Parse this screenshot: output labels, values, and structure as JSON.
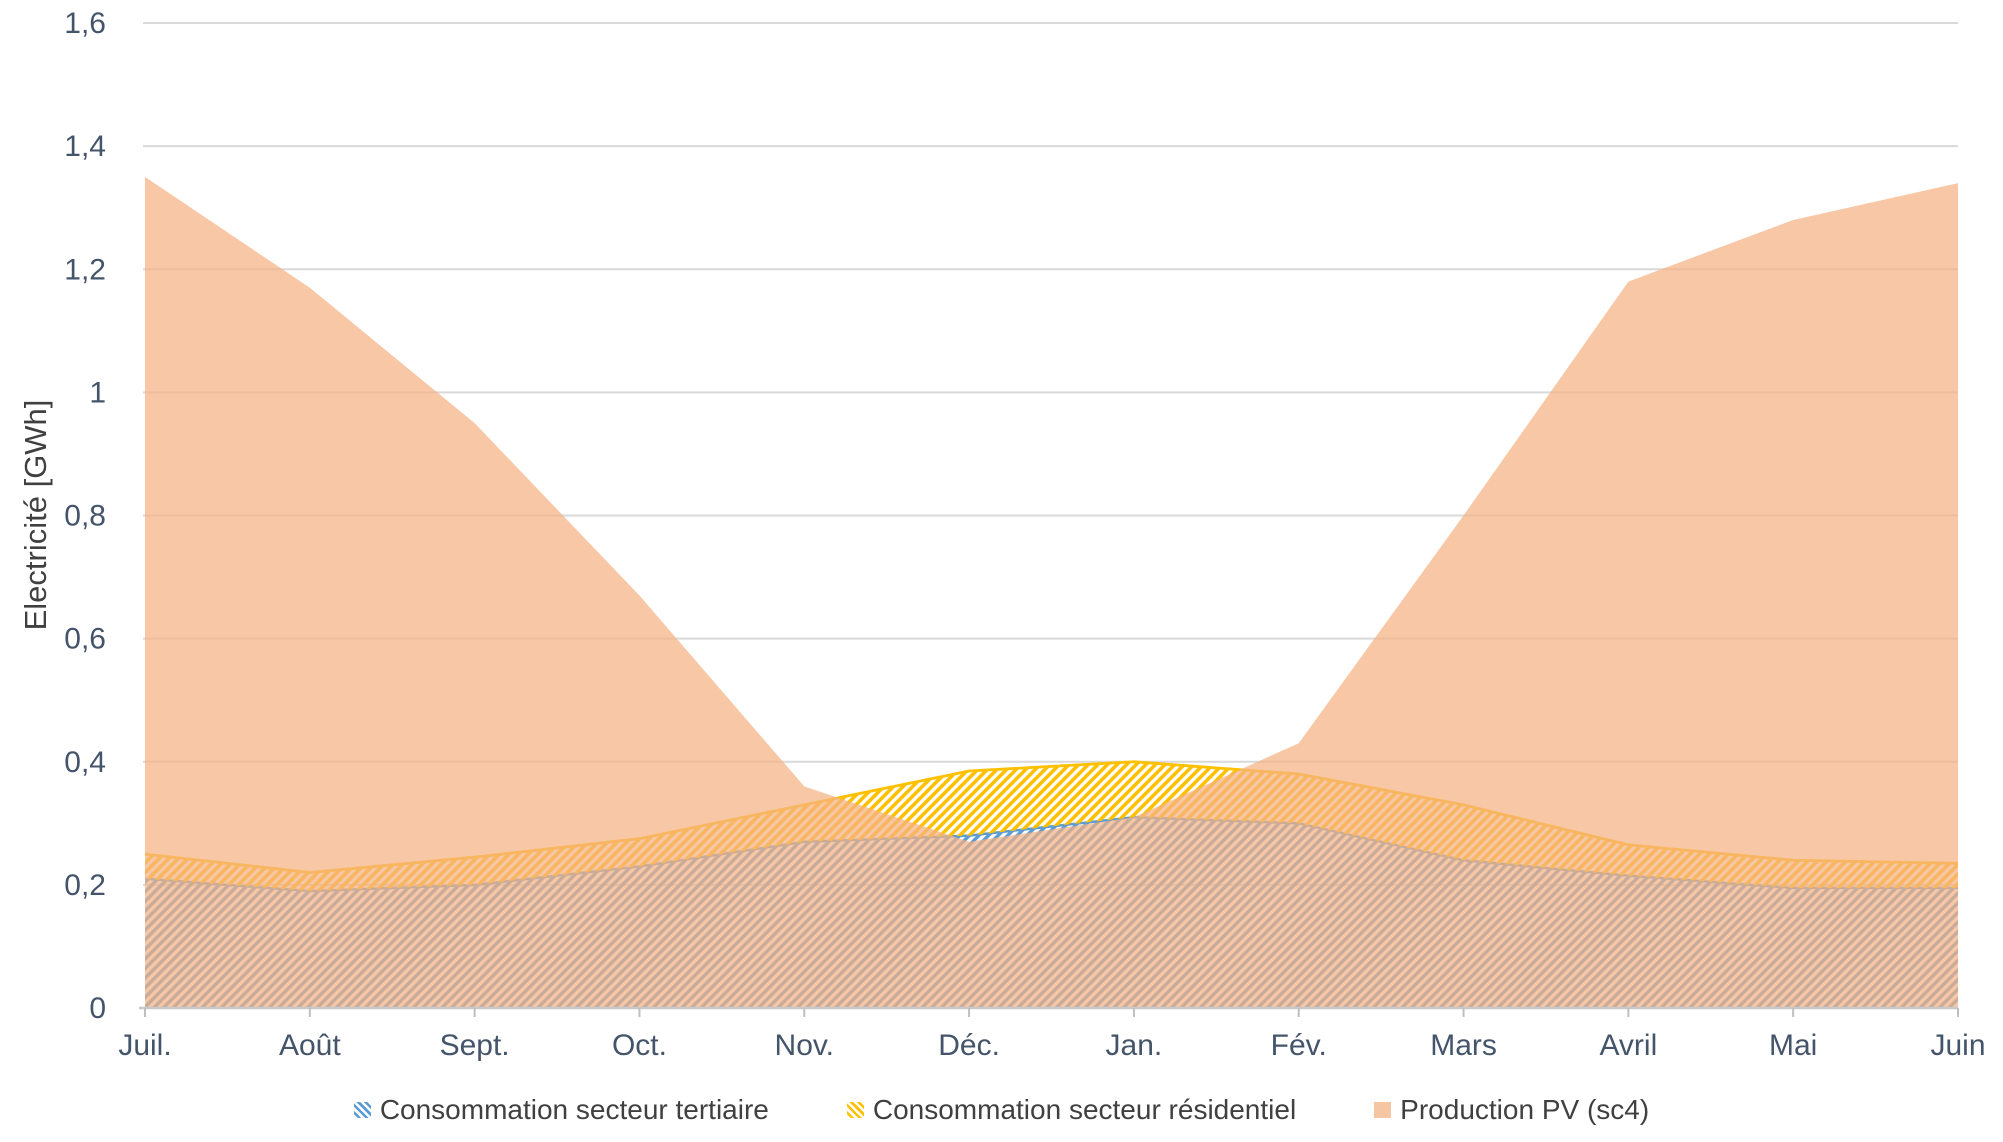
{
  "chart_data": {
    "type": "area",
    "title": "",
    "xlabel": "",
    "ylabel": "Electricité [GWh]",
    "x_categories": [
      "Juil.",
      "Août",
      "Sept.",
      "Oct.",
      "Nov.",
      "Déc.",
      "Jan.",
      "Fév.",
      "Mars",
      "Avril",
      "Mai",
      "Juin"
    ],
    "y_ticks": [
      "0",
      "0,2",
      "0,4",
      "0,6",
      "0,8",
      "1",
      "1,2",
      "1,4",
      "1,6"
    ],
    "ylim": [
      0,
      1.6
    ],
    "grid": true,
    "legend_position": "bottom",
    "series": [
      {
        "name": "Consommation secteur tertiaire",
        "style": "hatched-area",
        "stack": "consommation",
        "color": "#5B9BD5",
        "values": [
          0.21,
          0.19,
          0.2,
          0.23,
          0.27,
          0.28,
          0.31,
          0.3,
          0.24,
          0.215,
          0.195,
          0.195
        ]
      },
      {
        "name": "Consommation secteur résidentiel",
        "style": "hatched-area",
        "stack": "consommation",
        "color": "#FFC000",
        "values": [
          0.04,
          0.03,
          0.045,
          0.045,
          0.06,
          0.105,
          0.09,
          0.08,
          0.09,
          0.05,
          0.045,
          0.04
        ]
      },
      {
        "name": "Production PV (sc4)",
        "style": "solid-area",
        "stack": null,
        "color": "#F4B183",
        "opacity": 0.72,
        "values": [
          1.35,
          1.17,
          0.95,
          0.67,
          0.36,
          0.27,
          0.31,
          0.43,
          0.8,
          1.18,
          1.28,
          1.34
        ]
      }
    ],
    "colors": {
      "axis_text": "#44546A",
      "axis_title_text": "#404040",
      "legend_text": "#404040",
      "gridline": "#D9D9D9",
      "axis_line": "#C8C8C8",
      "tick_mark": "#BFBFBF"
    }
  }
}
